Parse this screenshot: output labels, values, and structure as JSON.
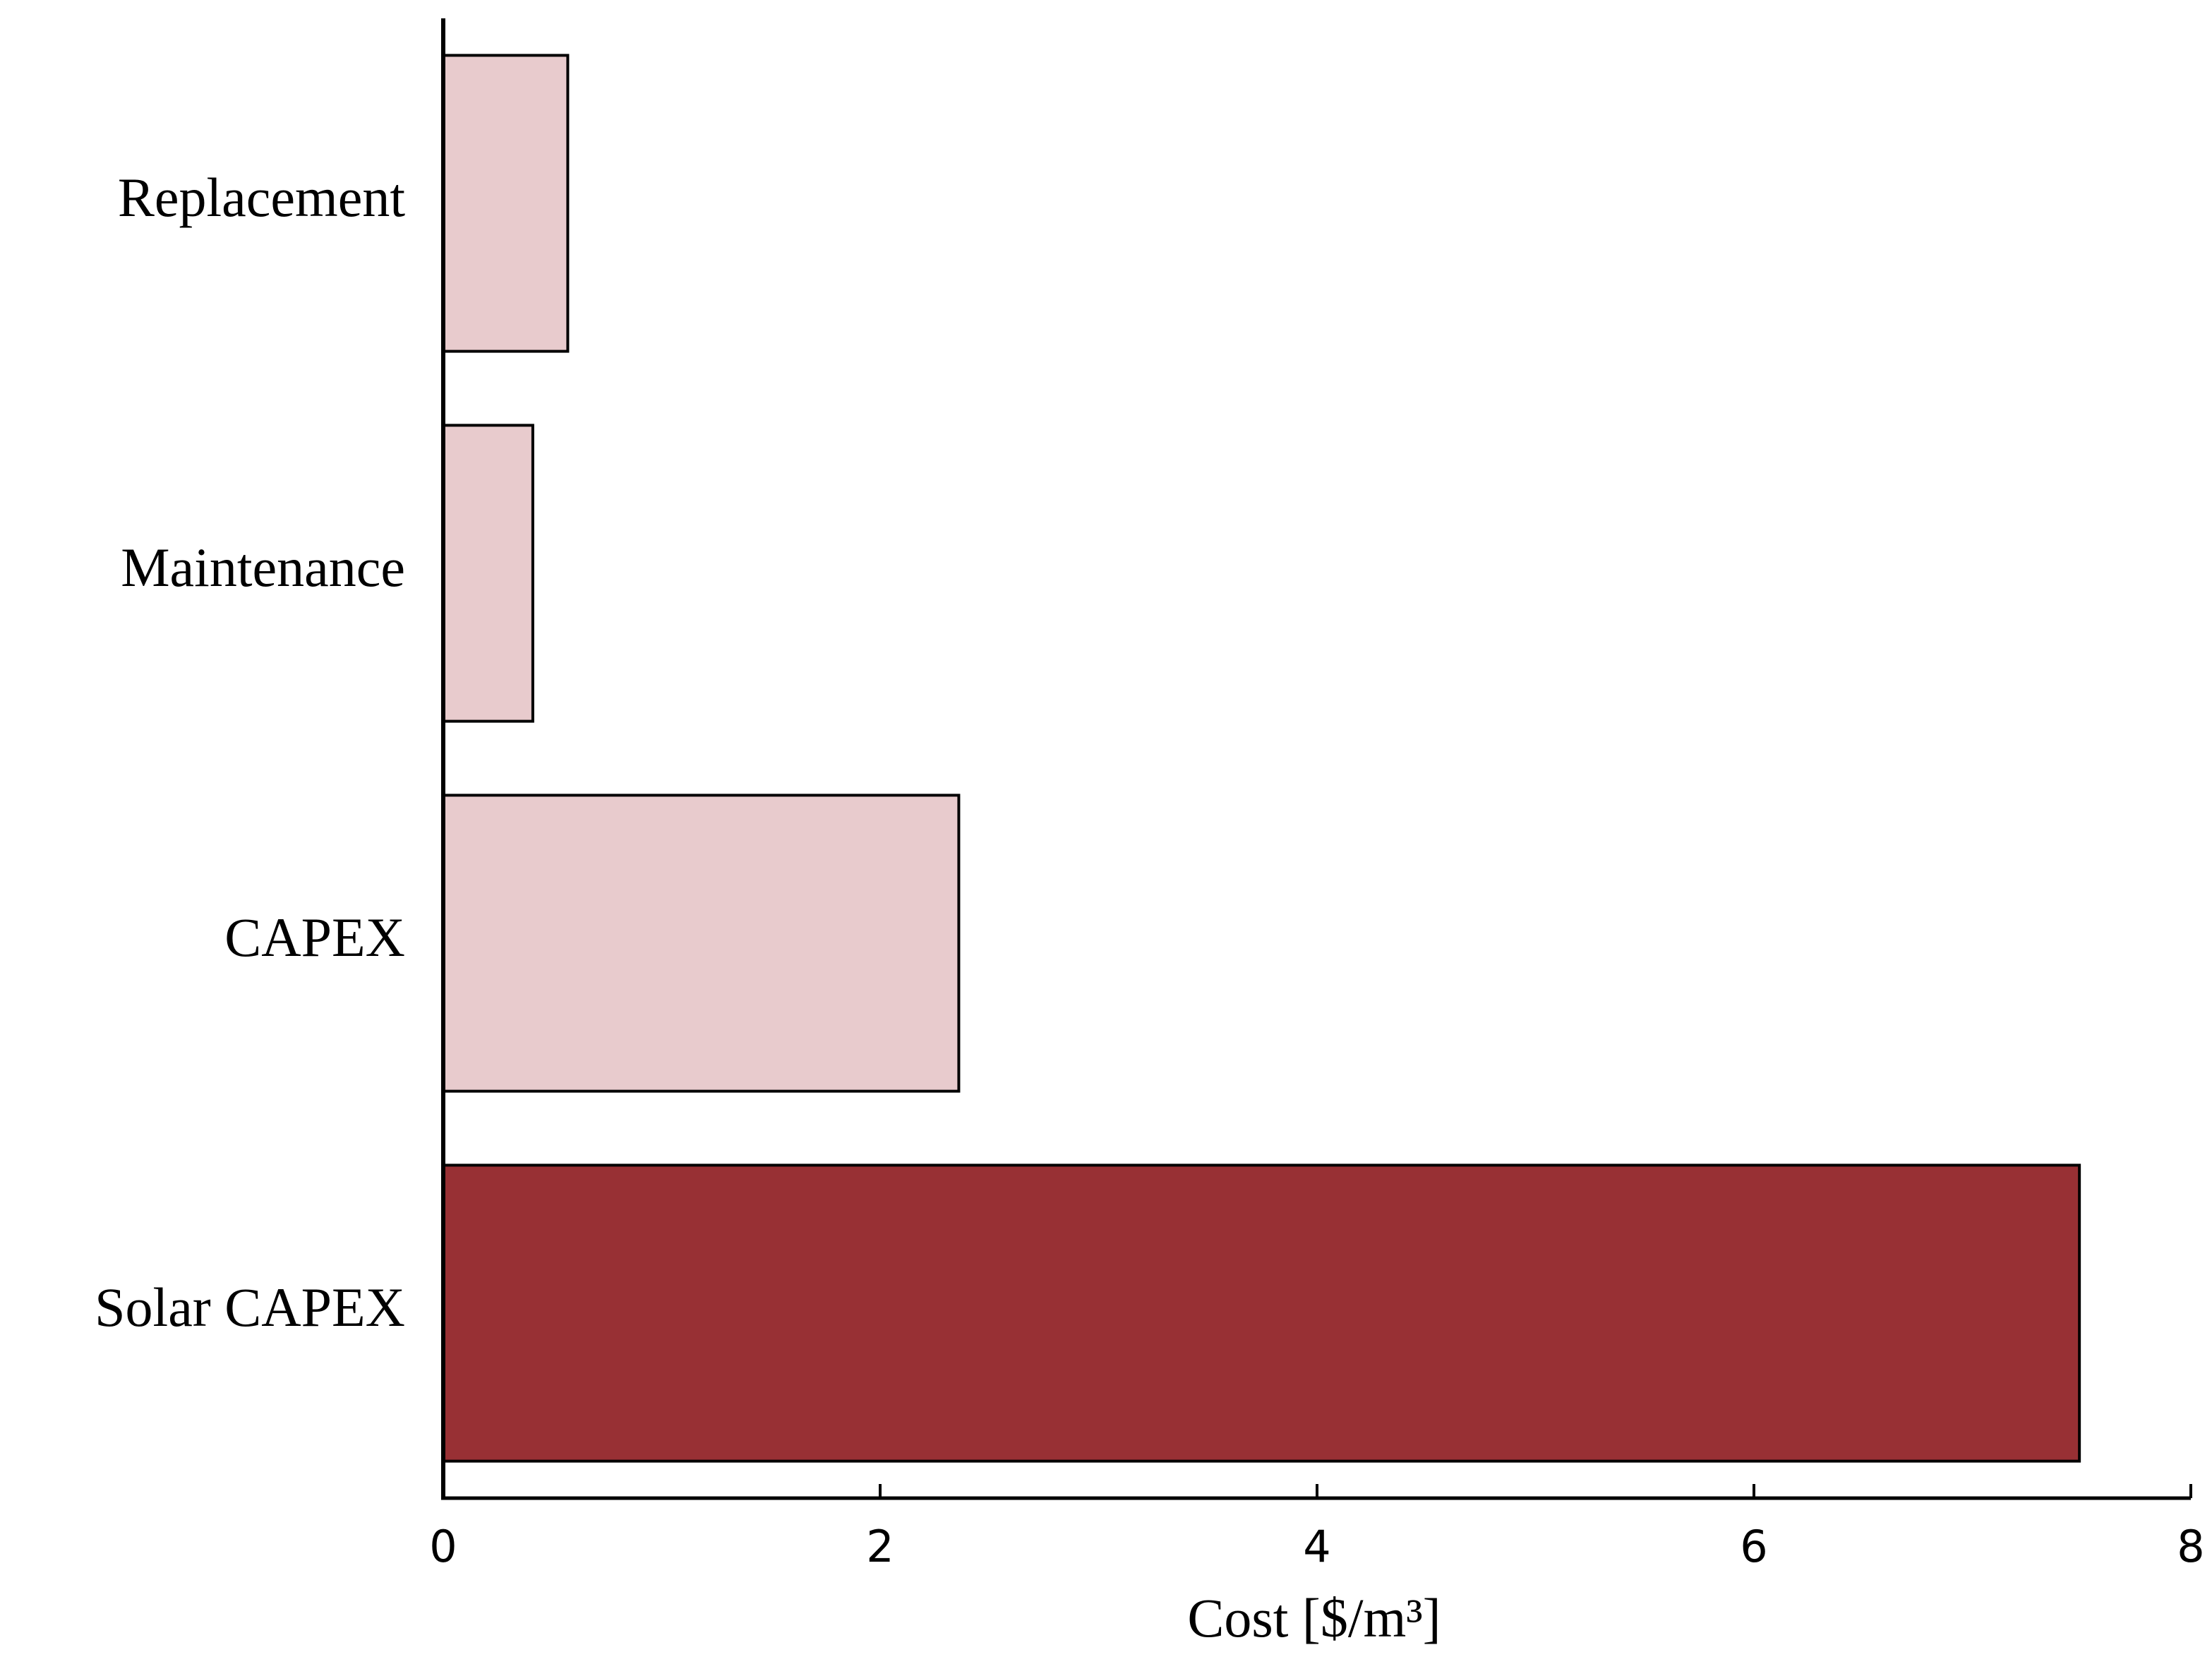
{
  "chart_data": {
    "type": "bar",
    "orientation": "horizontal",
    "xlabel": "Cost [$/m³]",
    "categories": [
      "Replacement",
      "Maintenance",
      "CAPEX",
      "Solar CAPEX"
    ],
    "values": [
      0.57,
      0.41,
      2.36,
      7.49
    ],
    "colors": [
      "#e8cbcd",
      "#e8cbcd",
      "#e8cbcd",
      "#983034"
    ],
    "xlim": [
      0,
      8
    ],
    "xticks": [
      0,
      2,
      4,
      6,
      8
    ],
    "grid": false
  }
}
